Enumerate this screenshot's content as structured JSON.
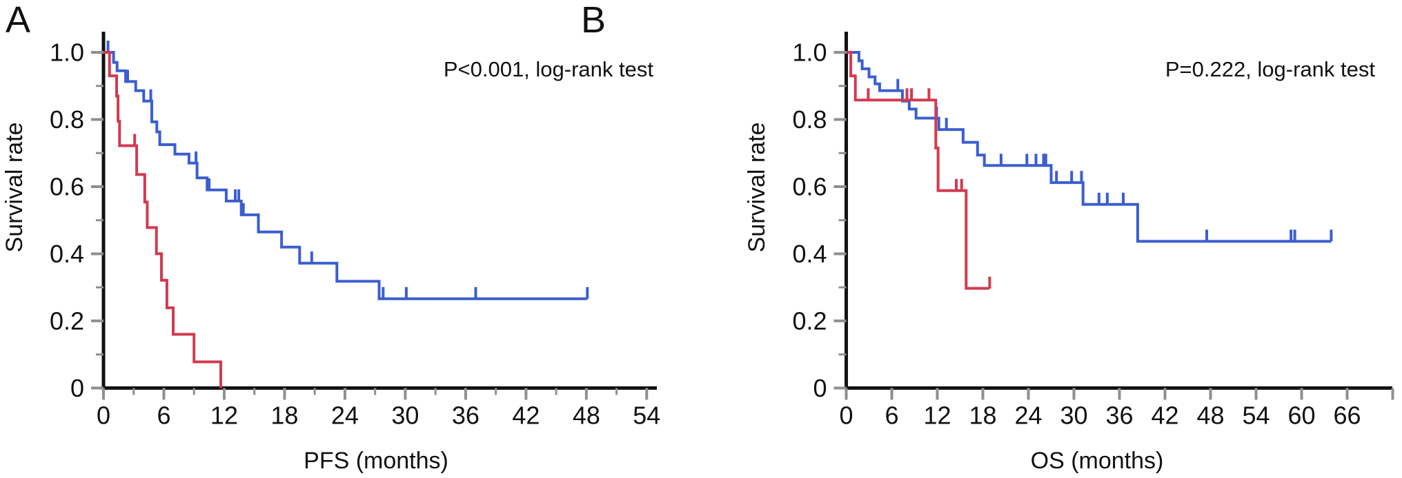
{
  "colors": {
    "blue": "#3b5ed0",
    "red": "#d23a50",
    "axis": "#111111",
    "tick": "#8f8f8f"
  },
  "chart_data": [
    {
      "type": "line",
      "subtype": "kaplan-meier-step",
      "title": "A",
      "annotation": "P<0.001, log-rank test",
      "xlabel": "PFS (months)",
      "ylabel": "Survival rate",
      "xlim": [
        0,
        55
      ],
      "ylim": [
        0,
        1.0
      ],
      "grid": false,
      "x_ticks": [
        {
          "t": 0,
          "label": "0"
        },
        {
          "t": 6,
          "label": "6"
        },
        {
          "t": 12,
          "label": "12"
        },
        {
          "t": 18,
          "label": "18"
        },
        {
          "t": 24,
          "label": "24"
        },
        {
          "t": 30,
          "label": "30"
        },
        {
          "t": 36,
          "label": "36"
        },
        {
          "t": 42,
          "label": "42"
        },
        {
          "t": 48,
          "label": "48"
        },
        {
          "t": 54,
          "label": "54"
        }
      ],
      "x_minor_ticks": [
        3,
        9,
        15,
        21,
        27,
        33,
        39,
        45,
        51
      ],
      "y_ticks": [
        {
          "v": 0,
          "label": "0"
        },
        {
          "v": 0.2,
          "label": "0.2"
        },
        {
          "v": 0.4,
          "label": "0.4"
        },
        {
          "v": 0.6,
          "label": "0.6"
        },
        {
          "v": 0.8,
          "label": "0.8"
        },
        {
          "v": 1.0,
          "label": "1.0"
        }
      ],
      "y_minor_ticks": [
        0.1,
        0.3,
        0.5,
        0.7,
        0.9
      ],
      "series": [
        {
          "name": "blue-group-pfs",
          "color": "#3b5ed0",
          "start": [
            0,
            1.0
          ],
          "steps": [
            [
              1.0,
              0.97
            ],
            [
              1.35,
              0.945
            ],
            [
              2.2,
              0.913
            ],
            [
              3.2,
              0.886
            ],
            [
              4.0,
              0.855
            ],
            [
              4.8,
              0.793
            ],
            [
              5.3,
              0.763
            ],
            [
              5.6,
              0.725
            ],
            [
              7.1,
              0.697
            ],
            [
              8.5,
              0.67
            ],
            [
              9.3,
              0.626
            ],
            [
              10.3,
              0.59
            ],
            [
              12.2,
              0.557
            ],
            [
              13.7,
              0.516
            ],
            [
              15.4,
              0.465
            ],
            [
              17.7,
              0.42
            ],
            [
              19.5,
              0.372
            ],
            [
              23.2,
              0.318
            ],
            [
              27.4,
              0.266
            ]
          ],
          "end_t": 48.1,
          "censors": [
            [
              0.45,
              1.0
            ],
            [
              2.4,
              0.913
            ],
            [
              4.7,
              0.855
            ],
            [
              9.2,
              0.67
            ],
            [
              10.5,
              0.59
            ],
            [
              13.1,
              0.557
            ],
            [
              13.45,
              0.557
            ],
            [
              13.9,
              0.516
            ],
            [
              20.7,
              0.372
            ],
            [
              27.8,
              0.266
            ],
            [
              30.1,
              0.266
            ],
            [
              37.0,
              0.266
            ],
            [
              48.1,
              0.266
            ]
          ]
        },
        {
          "name": "red-group-pfs",
          "color": "#d23a50",
          "start": [
            0,
            1.0
          ],
          "steps": [
            [
              0.6,
              0.93
            ],
            [
              1.3,
              0.87
            ],
            [
              1.45,
              0.795
            ],
            [
              1.6,
              0.722
            ],
            [
              3.3,
              0.636
            ],
            [
              4.1,
              0.554
            ],
            [
              4.35,
              0.478
            ],
            [
              5.26,
              0.4
            ],
            [
              5.76,
              0.321
            ],
            [
              6.3,
              0.239
            ],
            [
              6.93,
              0.16
            ],
            [
              9.0,
              0.078
            ],
            [
              11.66,
              0.0
            ]
          ],
          "end_t": 11.66,
          "censors": [
            [
              3.1,
              0.722
            ]
          ]
        }
      ]
    },
    {
      "type": "line",
      "subtype": "kaplan-meier-step",
      "title": "B",
      "annotation": "P=0.222, log-rank test",
      "xlabel": "OS (months)",
      "ylabel": "Survival rate",
      "xlim": [
        0,
        72
      ],
      "ylim": [
        0,
        1.0
      ],
      "grid": false,
      "x_ticks": [
        {
          "t": 0,
          "label": "0"
        },
        {
          "t": 6,
          "label": "6"
        },
        {
          "t": 12,
          "label": "12"
        },
        {
          "t": 18,
          "label": "18"
        },
        {
          "t": 24,
          "label": "24"
        },
        {
          "t": 30,
          "label": "30"
        },
        {
          "t": 36,
          "label": "36"
        },
        {
          "t": 42,
          "label": "42"
        },
        {
          "t": 48,
          "label": "48"
        },
        {
          "t": 54,
          "label": "54"
        },
        {
          "t": 60,
          "label": "60"
        },
        {
          "t": 66,
          "label": "66"
        },
        {
          "t": 72,
          "label": ""
        }
      ],
      "x_minor_ticks": [],
      "y_ticks": [
        {
          "v": 0,
          "label": "0"
        },
        {
          "v": 0.2,
          "label": "0.2"
        },
        {
          "v": 0.4,
          "label": "0.4"
        },
        {
          "v": 0.6,
          "label": "0.6"
        },
        {
          "v": 0.8,
          "label": "0.8"
        },
        {
          "v": 1.0,
          "label": "1.0"
        }
      ],
      "y_minor_ticks": [
        0.1,
        0.3,
        0.5,
        0.7,
        0.9
      ],
      "series": [
        {
          "name": "blue-group-os",
          "color": "#3b5ed0",
          "start": [
            0,
            1.0
          ],
          "steps": [
            [
              1.67,
              0.975
            ],
            [
              2.1,
              0.951
            ],
            [
              3.0,
              0.927
            ],
            [
              3.8,
              0.906
            ],
            [
              4.4,
              0.886
            ],
            [
              7.4,
              0.855
            ],
            [
              8.3,
              0.831
            ],
            [
              9.2,
              0.804
            ],
            [
              12.2,
              0.77
            ],
            [
              15.4,
              0.732
            ],
            [
              17.3,
              0.694
            ],
            [
              18.2,
              0.663
            ],
            [
              27.0,
              0.612
            ],
            [
              31.2,
              0.547
            ],
            [
              38.4,
              0.437
            ]
          ],
          "end_t": 63.9,
          "censors": [
            [
              6.8,
              0.886
            ],
            [
              11.9,
              0.804
            ],
            [
              13.2,
              0.77
            ],
            [
              20.4,
              0.663
            ],
            [
              23.8,
              0.663
            ],
            [
              25.0,
              0.663
            ],
            [
              26.0,
              0.663
            ],
            [
              26.3,
              0.663
            ],
            [
              27.7,
              0.612
            ],
            [
              29.7,
              0.612
            ],
            [
              31.0,
              0.612
            ],
            [
              33.3,
              0.547
            ],
            [
              34.4,
              0.547
            ],
            [
              36.5,
              0.547
            ],
            [
              47.5,
              0.437
            ],
            [
              58.6,
              0.437
            ],
            [
              59.1,
              0.437
            ],
            [
              63.9,
              0.437
            ]
          ]
        },
        {
          "name": "red-group-os",
          "color": "#d23a50",
          "start": [
            0,
            1.0
          ],
          "steps": [
            [
              0.6,
              0.93
            ],
            [
              1.2,
              0.858
            ],
            [
              11.8,
              0.715
            ],
            [
              12.1,
              0.588
            ],
            [
              15.8,
              0.297
            ]
          ],
          "end_t": 18.9,
          "censors": [
            [
              2.9,
              0.858
            ],
            [
              8.0,
              0.858
            ],
            [
              8.6,
              0.858
            ],
            [
              10.9,
              0.858
            ],
            [
              14.5,
              0.588
            ],
            [
              15.2,
              0.588
            ],
            [
              18.9,
              0.297
            ]
          ]
        }
      ]
    }
  ]
}
